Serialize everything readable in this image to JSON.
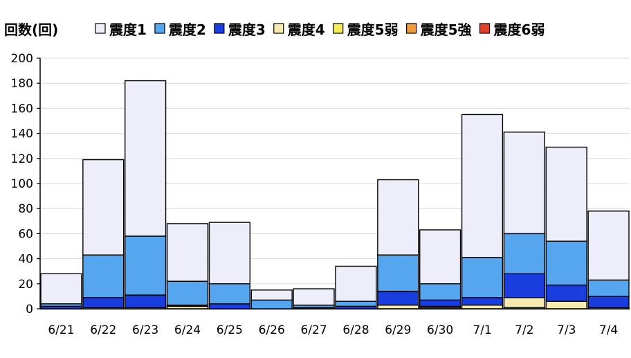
{
  "chart_data": {
    "type": "bar",
    "stacked": true,
    "ylabel": "回数(回)",
    "ylim": [
      0,
      200
    ],
    "yticks": [
      0,
      20,
      40,
      60,
      80,
      100,
      120,
      140,
      160,
      180,
      200
    ],
    "grid": true,
    "legend": "top",
    "categories": [
      "6/21",
      "6/22",
      "6/23",
      "6/24",
      "6/25",
      "6/26",
      "6/27",
      "6/28",
      "6/29",
      "6/30",
      "7/1",
      "7/2",
      "7/3",
      "7/4"
    ],
    "series": [
      {
        "name": "震度1",
        "color": "#eeeefa",
        "values": [
          24,
          76,
          124,
          46,
          49,
          8,
          13,
          28,
          60,
          43,
          114,
          81,
          75,
          55
        ]
      },
      {
        "name": "震度2",
        "color": "#55a5ef",
        "values": [
          2,
          34,
          47,
          19,
          16,
          7,
          2,
          4,
          29,
          13,
          32,
          32,
          35,
          13
        ]
      },
      {
        "name": "震度3",
        "color": "#1a3de0",
        "values": [
          2,
          8,
          10,
          1,
          4,
          0,
          1,
          2,
          11,
          5,
          6,
          19,
          13,
          9
        ]
      },
      {
        "name": "震度4",
        "color": "#f7eab0",
        "values": [
          0,
          1,
          1,
          2,
          0,
          0,
          0,
          0,
          3,
          1,
          3,
          8,
          6,
          1
        ]
      },
      {
        "name": "震度5弱",
        "color": "#f7ec5a",
        "values": [
          0,
          0,
          0,
          0,
          0,
          0,
          0,
          0,
          0,
          0,
          0,
          1,
          0,
          0
        ]
      },
      {
        "name": "震度5強",
        "color": "#ee9b3a",
        "values": [
          0,
          0,
          0,
          0,
          0,
          0,
          0,
          0,
          0,
          0,
          0,
          0,
          0,
          0
        ]
      },
      {
        "name": "震度6弱",
        "color": "#e3412a",
        "values": [
          0,
          0,
          0,
          0,
          0,
          0,
          0,
          0,
          0,
          1,
          0,
          0,
          0,
          0
        ]
      }
    ]
  }
}
